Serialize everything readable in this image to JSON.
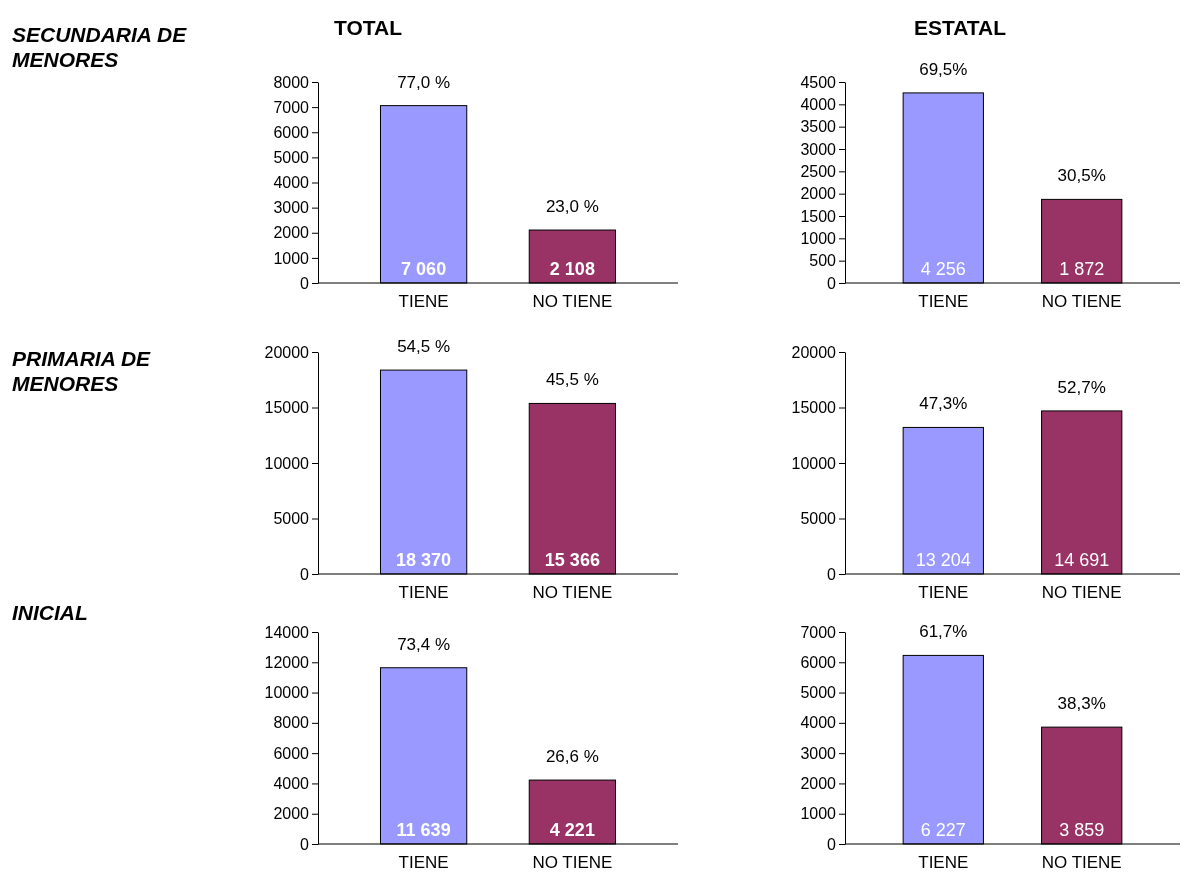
{
  "chart_data": [
    {
      "type": "bar",
      "title": "TOTAL",
      "annotations": [
        "SECUNDARIA DE MENORES",
        {
          "text": "77,0 %",
          "x": "TIENE",
          "y": 7060
        },
        {
          "text": "23,0 %",
          "x": "NO TIENE",
          "y": 2108
        }
      ],
      "categories": [
        "TIENE",
        "NO TIENE"
      ],
      "values": [
        7060,
        2108
      ],
      "colors": [
        "#9999ff",
        "#993366"
      ],
      "value_labels": [
        "7 060",
        "2 108"
      ],
      "ylim": [
        0,
        8000
      ],
      "yticks": [
        0,
        1000,
        2000,
        3000,
        4000,
        5000,
        6000,
        7000,
        8000
      ]
    },
    {
      "type": "bar",
      "title": "ESTATAL",
      "annotations": [
        {
          "text": "69,5%",
          "x": "TIENE",
          "y": 4256
        },
        {
          "text": "30,5%",
          "x": "NO TIENE",
          "y": 1872
        }
      ],
      "categories": [
        "TIENE",
        "NO TIENE"
      ],
      "values": [
        4256,
        1872
      ],
      "colors": [
        "#9999ff",
        "#993366"
      ],
      "value_labels": [
        "4 256",
        "1 872"
      ],
      "ylim": [
        0,
        4500
      ],
      "yticks": [
        0,
        500,
        1000,
        1500,
        2000,
        2500,
        3000,
        3500,
        4000,
        4500
      ]
    },
    {
      "type": "bar",
      "annotations": [
        "PRIMARIA DE MENORES",
        {
          "text": "54,5 %",
          "x": "TIENE",
          "y": 18370
        },
        {
          "text": "45,5 %",
          "x": "NO TIENE",
          "y": 15366
        }
      ],
      "categories": [
        "TIENE",
        "NO TIENE"
      ],
      "values": [
        18370,
        15366
      ],
      "colors": [
        "#9999ff",
        "#993366"
      ],
      "value_labels": [
        "18 370",
        "15 366"
      ],
      "ylim": [
        0,
        20000
      ],
      "yticks": [
        0,
        5000,
        10000,
        15000,
        20000
      ]
    },
    {
      "type": "bar",
      "annotations": [
        {
          "text": "47,3%",
          "x": "TIENE",
          "y": 13204
        },
        {
          "text": "52,7%",
          "x": "NO TIENE",
          "y": 14691
        }
      ],
      "categories": [
        "TIENE",
        "NO TIENE"
      ],
      "values": [
        13204,
        14691
      ],
      "colors": [
        "#9999ff",
        "#993366"
      ],
      "value_labels": [
        "13 204",
        "14 691"
      ],
      "ylim": [
        0,
        20000
      ],
      "yticks": [
        0,
        5000,
        10000,
        15000,
        20000
      ]
    },
    {
      "type": "bar",
      "annotations": [
        "INICIAL",
        {
          "text": "73,4 %",
          "x": "TIENE",
          "y": 11639
        },
        {
          "text": "26,6 %",
          "x": "NO TIENE",
          "y": 4221
        }
      ],
      "categories": [
        "TIENE",
        "NO TIENE"
      ],
      "values": [
        11639,
        4221
      ],
      "colors": [
        "#9999ff",
        "#993366"
      ],
      "value_labels": [
        "11 639",
        "4 221"
      ],
      "ylim": [
        0,
        14000
      ],
      "yticks": [
        0,
        2000,
        4000,
        6000,
        8000,
        10000,
        12000,
        14000
      ]
    },
    {
      "type": "bar",
      "annotations": [
        {
          "text": "61,7%",
          "x": "TIENE",
          "y": 6227
        },
        {
          "text": "38,3%",
          "x": "NO TIENE",
          "y": 3859
        }
      ],
      "categories": [
        "TIENE",
        "NO TIENE"
      ],
      "values": [
        6227,
        3859
      ],
      "colors": [
        "#9999ff",
        "#993366"
      ],
      "value_labels": [
        "6 227",
        "3 859"
      ],
      "ylim": [
        0,
        7000
      ],
      "yticks": [
        0,
        1000,
        2000,
        3000,
        4000,
        5000,
        6000,
        7000
      ]
    }
  ]
}
